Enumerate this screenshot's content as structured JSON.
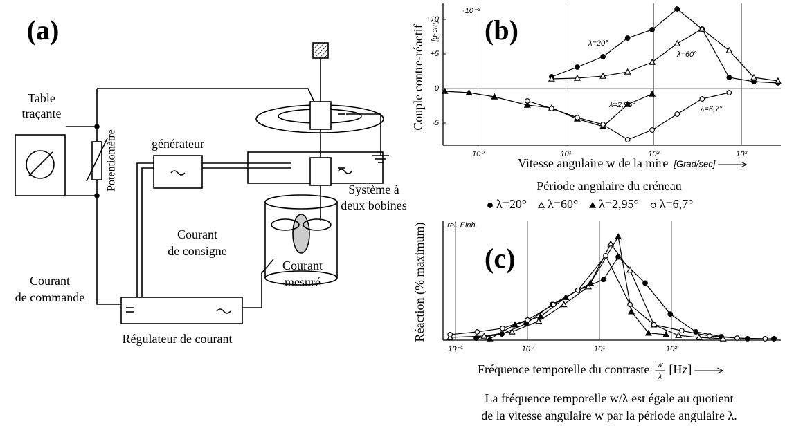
{
  "diagram": {
    "label": "(a)",
    "table": [
      "Table",
      "traçante"
    ],
    "potentiometer": "Potentiomètre",
    "generator": "générateur",
    "coil_system": [
      "Système à",
      "deux bobines"
    ],
    "setpoint_current": [
      "Courant",
      "de consigne"
    ],
    "measured_current": [
      "Courant",
      "mesuré"
    ],
    "control_current": [
      "Courant",
      "de commande"
    ],
    "regulator": "Régulateur de courant"
  },
  "chart_data": [
    {
      "type": "line",
      "panel": "(b)",
      "xlog": true,
      "grid": "x",
      "zeroline": true,
      "ylabel": "Couple contre-réactif",
      "yunit": "[g·cm]",
      "y_multiplier": "·10⁻³",
      "xlabel": "Vitesse angulaire w de la mire",
      "xunit": "[Grad/sec]",
      "xlim": [
        0.4,
        2800
      ],
      "ylim": [
        -8.2,
        12.3
      ],
      "xticks": [
        {
          "value": 1,
          "label": "10⁰"
        },
        {
          "value": 10,
          "label": "10¹"
        },
        {
          "value": 100,
          "label": "10²"
        },
        {
          "value": 1000,
          "label": "10³"
        }
      ],
      "yticks": [
        -5,
        0,
        {
          "value": 5,
          "label": "+5"
        },
        {
          "value": 10,
          "label": "+10"
        }
      ],
      "series": [
        {
          "name": "λ=20°",
          "color": "#000000",
          "marker": "filled-circle",
          "x": [
            6.9,
            13.5,
            26.5,
            50.5,
            96,
            185,
            356,
            722,
            1380,
            2600
          ],
          "values": [
            1.7,
            3.1,
            4.6,
            7.3,
            8.5,
            11.5,
            8.6,
            1.6,
            1.0,
            0.8
          ]
        },
        {
          "name": "λ=60°",
          "color": "#000000",
          "marker": "open-triangle",
          "x": [
            6.9,
            13.5,
            26.5,
            50.5,
            96,
            185,
            356,
            722,
            1380,
            2600
          ],
          "values": [
            1.4,
            1.5,
            1.8,
            2.4,
            3.8,
            6.5,
            8.6,
            5.5,
            1.6,
            1.1
          ]
        },
        {
          "name": "λ=2,95°",
          "color": "#000000",
          "marker": "filled-triangle",
          "x": [
            0.42,
            0.79,
            1.54,
            3.65,
            6.9,
            13.5,
            26.5,
            50.5,
            96
          ],
          "values": [
            -0.4,
            -0.6,
            -1.2,
            -2.4,
            -2.8,
            -4.4,
            -5.5,
            -2.3,
            -0.8
          ]
        },
        {
          "name": "λ=6,7°",
          "color": "#000000",
          "marker": "open-circle",
          "x": [
            3.65,
            6.9,
            13.5,
            26.5,
            50.5,
            96,
            185,
            356,
            722
          ],
          "values": [
            -1.8,
            -2.9,
            -4.2,
            -5.2,
            -7.4,
            -6.0,
            -3.7,
            -1.5,
            -0.6
          ]
        }
      ]
    },
    {
      "type": "line",
      "panel": "(c)",
      "xlog": true,
      "grid": "x",
      "legend": "top",
      "legend_title": "Période angulaire du créneau",
      "ylabel": "Réaction (% maximum)",
      "yunit": "rel. Einh.",
      "xlabel": "Fréquence temporelle du contraste",
      "xunit_fraction": {
        "numerator": "w",
        "denominator": "λ"
      },
      "xunit": "[Hz]",
      "xlim": [
        0.067,
        3300
      ],
      "ylim": [
        0,
        100
      ],
      "xticks": [
        {
          "value": 0.1,
          "label": "10⁻¹"
        },
        {
          "value": 1,
          "label": "10⁰"
        },
        {
          "value": 10,
          "label": "10¹"
        },
        {
          "value": 100,
          "label": "10²"
        }
      ],
      "series": [
        {
          "name": "λ=20°",
          "color": "#000000",
          "marker": "filled-circle",
          "x": [
            0.194,
            0.44,
            0.96,
            2.2,
            5.0,
            11.4,
            18.2,
            43,
            96,
            218,
            490,
            1140,
            2650
          ],
          "values": [
            1.7,
            5.2,
            14,
            30,
            42,
            51,
            70,
            48,
            22,
            7,
            3,
            1.2,
            1.2
          ]
        },
        {
          "name": "λ=60°",
          "color": "#000000",
          "marker": "open-triangle",
          "x": [
            0.084,
            0.25,
            0.61,
            1.43,
            3.2,
            7.0,
            14.3,
            26.5,
            57,
            125,
            241,
            520
          ],
          "values": [
            2.3,
            3.5,
            7,
            16,
            30,
            45,
            81,
            59,
            13,
            4,
            2.3,
            1.2
          ]
        },
        {
          "name": "λ=2,95°",
          "color": "#000000",
          "marker": "filled-triangle",
          "x": [
            0.3,
            0.67,
            1.52,
            3.4,
            7.5,
            18.2,
            27.7,
            48,
            84
          ],
          "values": [
            1.2,
            13,
            20,
            36,
            48,
            87,
            24,
            6,
            4.7
          ]
        },
        {
          "name": "λ=6,7°",
          "color": "#000000",
          "marker": "open-circle",
          "x": [
            0.084,
            0.2,
            0.45,
            1.0,
            2.3,
            5.0,
            12.2,
            26.5,
            57,
            139,
            338,
            815,
            2000
          ],
          "values": [
            4.7,
            7,
            10,
            17,
            30,
            42,
            71,
            30,
            13,
            8,
            3.5,
            1.7,
            1.2
          ]
        }
      ],
      "caption": [
        "La fréquence temporelle w/λ est égale au quotient",
        "de la vitesse angulaire w par la période angulaire λ."
      ]
    }
  ]
}
